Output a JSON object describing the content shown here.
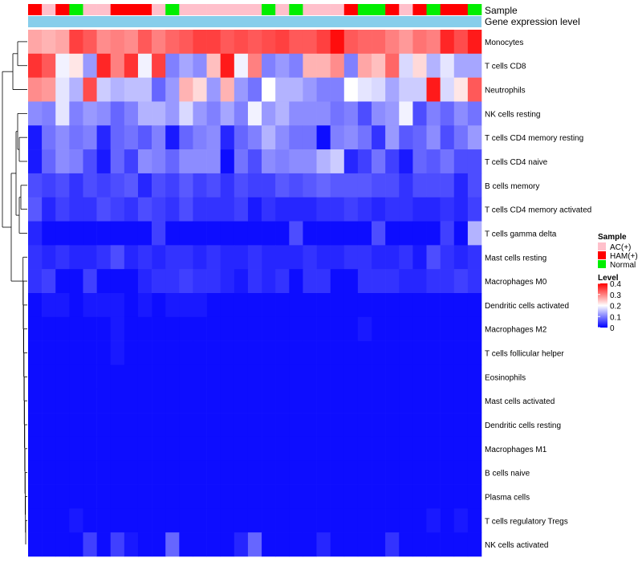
{
  "chart_data": {
    "type": "heatmap",
    "title": "",
    "annotation_tracks": [
      "Sample",
      "Gene expression level"
    ],
    "sample_groups": [
      "AC(+)",
      "HAM(+)",
      "Normal"
    ],
    "sample_group_colors": {
      "AC(+)": "#ffc0cb",
      "HAM(+)": "#ff0000",
      "Normal": "#00ee00"
    },
    "expression_track_color": "#87ceeb",
    "sample_annotation": [
      "HAM(+)",
      "AC(+)",
      "HAM(+)",
      "Normal",
      "AC(+)",
      "AC(+)",
      "HAM(+)",
      "HAM(+)",
      "HAM(+)",
      "AC(+)",
      "Normal",
      "AC(+)",
      "AC(+)",
      "AC(+)",
      "AC(+)",
      "AC(+)",
      "AC(+)",
      "Normal",
      "AC(+)",
      "Normal",
      "AC(+)",
      "AC(+)",
      "AC(+)",
      "HAM(+)",
      "Normal",
      "Normal",
      "HAM(+)",
      "AC(+)",
      "HAM(+)",
      "Normal",
      "HAM(+)",
      "HAM(+)",
      "Normal"
    ],
    "rows": [
      "Monocytes",
      "T cells CD8",
      "Neutrophils",
      "NK cells resting",
      "T cells CD4 memory resting",
      "T cells CD4 naive",
      "B cells memory",
      "T cells CD4 memory activated",
      "T cells gamma delta",
      "Mast cells resting",
      "Macrophages M0",
      "Dendritic cells activated",
      "Macrophages M2",
      "T cells follicular helper",
      "Eosinophils",
      "Mast cells activated",
      "Dendritic cells resting",
      "Macrophages M1",
      "B cells naive",
      "Plasma cells",
      "T cells regulatory  Tregs",
      "NK cells activated"
    ],
    "values": [
      [
        0.27,
        0.26,
        0.27,
        0.35,
        0.33,
        0.29,
        0.3,
        0.29,
        0.33,
        0.3,
        0.32,
        0.33,
        0.35,
        0.35,
        0.33,
        0.34,
        0.33,
        0.34,
        0.35,
        0.33,
        0.33,
        0.35,
        0.39,
        0.33,
        0.32,
        0.32,
        0.3,
        0.28,
        0.31,
        0.3,
        0.37,
        0.34,
        0.38
      ],
      [
        0.36,
        0.33,
        0.19,
        0.22,
        0.12,
        0.37,
        0.3,
        0.36,
        0.19,
        0.35,
        0.1,
        0.13,
        0.11,
        0.25,
        0.38,
        0.19,
        0.3,
        0.1,
        0.12,
        0.1,
        0.26,
        0.26,
        0.29,
        0.1,
        0.27,
        0.25,
        0.32,
        0.17,
        0.23,
        0.14,
        0.18,
        0.13,
        0.13
      ],
      [
        0.29,
        0.28,
        0.18,
        0.14,
        0.34,
        0.16,
        0.14,
        0.15,
        0.15,
        0.08,
        0.12,
        0.26,
        0.23,
        0.12,
        0.26,
        0.12,
        0.09,
        0.2,
        0.14,
        0.14,
        0.12,
        0.1,
        0.1,
        0.2,
        0.18,
        0.17,
        0.13,
        0.16,
        0.16,
        0.38,
        0.17,
        0.22,
        0.33
      ],
      [
        0.11,
        0.1,
        0.18,
        0.1,
        0.12,
        0.11,
        0.08,
        0.1,
        0.14,
        0.14,
        0.12,
        0.17,
        0.12,
        0.1,
        0.13,
        0.1,
        0.19,
        0.12,
        0.14,
        0.11,
        0.11,
        0.11,
        0.09,
        0.1,
        0.06,
        0.11,
        0.12,
        0.19,
        0.06,
        0.1,
        0.08,
        0.11,
        0.09
      ],
      [
        0.02,
        0.09,
        0.11,
        0.09,
        0.1,
        0.03,
        0.08,
        0.09,
        0.07,
        0.1,
        0.02,
        0.08,
        0.1,
        0.11,
        0.03,
        0.08,
        0.1,
        0.14,
        0.11,
        0.09,
        0.09,
        0.01,
        0.1,
        0.11,
        0.09,
        0.04,
        0.12,
        0.07,
        0.08,
        0.11,
        0.06,
        0.09,
        0.12
      ],
      [
        0.02,
        0.08,
        0.11,
        0.1,
        0.06,
        0.02,
        0.08,
        0.05,
        0.11,
        0.1,
        0.08,
        0.11,
        0.11,
        0.11,
        0.01,
        0.09,
        0.06,
        0.11,
        0.1,
        0.11,
        0.11,
        0.14,
        0.16,
        0.03,
        0.05,
        0.09,
        0.05,
        0.02,
        0.08,
        0.07,
        0.09,
        0.06,
        0.06
      ],
      [
        0.06,
        0.05,
        0.06,
        0.04,
        0.06,
        0.05,
        0.06,
        0.07,
        0.03,
        0.06,
        0.05,
        0.07,
        0.05,
        0.06,
        0.04,
        0.06,
        0.05,
        0.05,
        0.07,
        0.06,
        0.07,
        0.08,
        0.07,
        0.07,
        0.07,
        0.06,
        0.06,
        0.04,
        0.06,
        0.06,
        0.06,
        0.03,
        0.06
      ],
      [
        0.07,
        0.03,
        0.05,
        0.04,
        0.04,
        0.06,
        0.05,
        0.04,
        0.06,
        0.05,
        0.04,
        0.06,
        0.04,
        0.04,
        0.04,
        0.05,
        0.02,
        0.04,
        0.03,
        0.03,
        0.03,
        0.04,
        0.04,
        0.05,
        0.04,
        0.03,
        0.04,
        0.04,
        0.03,
        0.03,
        0.04,
        0.03,
        0.05
      ],
      [
        0.03,
        0.01,
        0.01,
        0.01,
        0.01,
        0.01,
        0.01,
        0.01,
        0.01,
        0.05,
        0.01,
        0.01,
        0.01,
        0.01,
        0.01,
        0.01,
        0.01,
        0.01,
        0.01,
        0.06,
        0.01,
        0.01,
        0.01,
        0.01,
        0.01,
        0.06,
        0.01,
        0.01,
        0.01,
        0.01,
        0.05,
        0.01,
        0.14
      ],
      [
        0.04,
        0.03,
        0.04,
        0.03,
        0.03,
        0.04,
        0.06,
        0.03,
        0.04,
        0.03,
        0.04,
        0.04,
        0.03,
        0.04,
        0.03,
        0.03,
        0.04,
        0.03,
        0.03,
        0.03,
        0.04,
        0.03,
        0.03,
        0.04,
        0.04,
        0.03,
        0.03,
        0.04,
        0.02,
        0.06,
        0.04,
        0.03,
        0.04
      ],
      [
        0.04,
        0.05,
        0.01,
        0.01,
        0.05,
        0.01,
        0.01,
        0.01,
        0.03,
        0.04,
        0.04,
        0.05,
        0.04,
        0.04,
        0.03,
        0.02,
        0.04,
        0.03,
        0.04,
        0.01,
        0.04,
        0.04,
        0.01,
        0.01,
        0.04,
        0.04,
        0.04,
        0.03,
        0.03,
        0.04,
        0.04,
        0.05,
        0.04
      ],
      [
        0.01,
        0.02,
        0.02,
        0.01,
        0.02,
        0.02,
        0.02,
        0.01,
        0.02,
        0.01,
        0.02,
        0.02,
        0.02,
        0.01,
        0.01,
        0.01,
        0.01,
        0.01,
        0.01,
        0.01,
        0.01,
        0.01,
        0.01,
        0.01,
        0.01,
        0.01,
        0.01,
        0.01,
        0.01,
        0.01,
        0.01,
        0.01,
        0.01
      ],
      [
        0.01,
        0.01,
        0.01,
        0.01,
        0.01,
        0.01,
        0.02,
        0.01,
        0.01,
        0.01,
        0.01,
        0.01,
        0.01,
        0.01,
        0.01,
        0.01,
        0.01,
        0.01,
        0.01,
        0.01,
        0.01,
        0.01,
        0.01,
        0.01,
        0.02,
        0.01,
        0.01,
        0.01,
        0.01,
        0.01,
        0.01,
        0.01,
        0.01
      ],
      [
        0.01,
        0.01,
        0.01,
        0.01,
        0.01,
        0.01,
        0.02,
        0.01,
        0.01,
        0.01,
        0.01,
        0.01,
        0.01,
        0.01,
        0.01,
        0.01,
        0.01,
        0.01,
        0.01,
        0.01,
        0.01,
        0.01,
        0.01,
        0.01,
        0.01,
        0.01,
        0.01,
        0.01,
        0.01,
        0.01,
        0.01,
        0.01,
        0.01
      ],
      [
        0.01,
        0.01,
        0.01,
        0.01,
        0.01,
        0.01,
        0.01,
        0.01,
        0.01,
        0.01,
        0.01,
        0.01,
        0.01,
        0.01,
        0.01,
        0.01,
        0.01,
        0.01,
        0.01,
        0.01,
        0.01,
        0.01,
        0.01,
        0.01,
        0.01,
        0.01,
        0.01,
        0.01,
        0.01,
        0.01,
        0.01,
        0.01,
        0.01
      ],
      [
        0.01,
        0.01,
        0.01,
        0.01,
        0.01,
        0.01,
        0.01,
        0.01,
        0.01,
        0.01,
        0.01,
        0.01,
        0.01,
        0.01,
        0.01,
        0.01,
        0.01,
        0.01,
        0.01,
        0.01,
        0.01,
        0.01,
        0.01,
        0.01,
        0.01,
        0.01,
        0.01,
        0.01,
        0.01,
        0.01,
        0.01,
        0.01,
        0.01
      ],
      [
        0.01,
        0.01,
        0.01,
        0.01,
        0.01,
        0.01,
        0.01,
        0.01,
        0.01,
        0.01,
        0.01,
        0.01,
        0.01,
        0.01,
        0.01,
        0.01,
        0.01,
        0.01,
        0.01,
        0.01,
        0.01,
        0.01,
        0.01,
        0.01,
        0.01,
        0.01,
        0.01,
        0.01,
        0.01,
        0.01,
        0.01,
        0.01,
        0.01
      ],
      [
        0.01,
        0.01,
        0.01,
        0.01,
        0.01,
        0.01,
        0.01,
        0.01,
        0.01,
        0.01,
        0.01,
        0.01,
        0.01,
        0.01,
        0.01,
        0.01,
        0.01,
        0.01,
        0.01,
        0.01,
        0.01,
        0.01,
        0.01,
        0.01,
        0.01,
        0.01,
        0.01,
        0.01,
        0.01,
        0.01,
        0.01,
        0.01,
        0.01
      ],
      [
        0.01,
        0.01,
        0.01,
        0.01,
        0.01,
        0.01,
        0.01,
        0.01,
        0.01,
        0.01,
        0.01,
        0.01,
        0.01,
        0.01,
        0.01,
        0.01,
        0.01,
        0.01,
        0.01,
        0.01,
        0.01,
        0.01,
        0.01,
        0.01,
        0.01,
        0.01,
        0.01,
        0.01,
        0.01,
        0.01,
        0.01,
        0.01,
        0.01
      ],
      [
        0.01,
        0.01,
        0.01,
        0.01,
        0.01,
        0.01,
        0.01,
        0.01,
        0.01,
        0.01,
        0.01,
        0.01,
        0.01,
        0.01,
        0.01,
        0.01,
        0.01,
        0.01,
        0.01,
        0.01,
        0.01,
        0.01,
        0.01,
        0.01,
        0.01,
        0.01,
        0.01,
        0.01,
        0.01,
        0.01,
        0.01,
        0.01,
        0.01
      ],
      [
        0.01,
        0.01,
        0.01,
        0.02,
        0.01,
        0.01,
        0.01,
        0.01,
        0.01,
        0.01,
        0.01,
        0.01,
        0.01,
        0.01,
        0.01,
        0.01,
        0.01,
        0.01,
        0.01,
        0.01,
        0.01,
        0.01,
        0.01,
        0.01,
        0.01,
        0.01,
        0.01,
        0.01,
        0.01,
        0.02,
        0.01,
        0.02,
        0.01
      ],
      [
        0.01,
        0.01,
        0.01,
        0.01,
        0.05,
        0.01,
        0.05,
        0.02,
        0.01,
        0.01,
        0.08,
        0.01,
        0.01,
        0.01,
        0.01,
        0.03,
        0.08,
        0.01,
        0.01,
        0.01,
        0.01,
        0.03,
        0.01,
        0.01,
        0.01,
        0.01,
        0.04,
        0.01,
        0.01,
        0.01,
        0.01,
        0.01,
        0.01
      ]
    ],
    "color_scale": {
      "min": 0,
      "max": 0.4,
      "stops": [
        [
          0,
          "#0000ff"
        ],
        [
          0.2,
          "#ffffff"
        ],
        [
          0.4,
          "#ff0000"
        ]
      ]
    },
    "legend": {
      "position": "right",
      "sample_title": "Sample",
      "level_title": "Level",
      "level_ticks": [
        "0.4",
        "0.3",
        "0.2",
        "0.1",
        "0"
      ]
    },
    "xlabel": "",
    "ylabel": ""
  }
}
